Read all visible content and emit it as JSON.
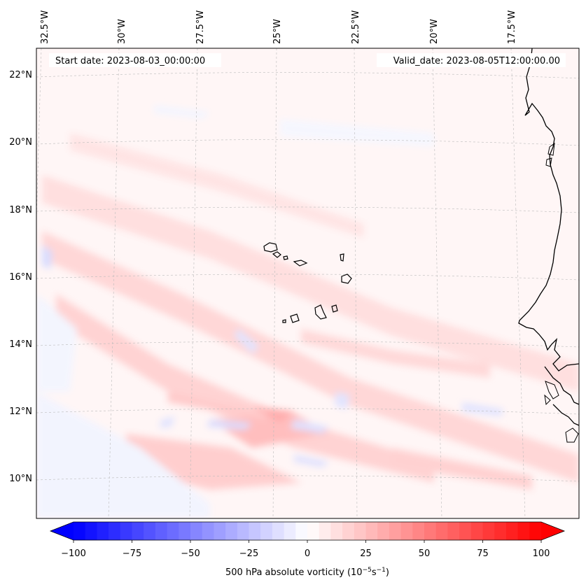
{
  "map": {
    "start_date_label": "Start date: 2023-08-03_00:00:00",
    "valid_date_label": "Valid_date: 2023-08-05T12:00:00.00",
    "lon_labels": [
      "32.5°W",
      "30°W",
      "27.5°W",
      "25°W",
      "22.5°W",
      "20°W",
      "17.5°W"
    ],
    "lat_labels": [
      "22°N",
      "20°N",
      "18°N",
      "16°N",
      "14°N",
      "12°N",
      "10°N"
    ]
  },
  "colorbar": {
    "ticks": [
      "−100",
      "−75",
      "−50",
      "−25",
      "0",
      "25",
      "50",
      "75",
      "100"
    ],
    "label_prefix": "500 hPa absolute vorticity (10",
    "label_exp1": "−5",
    "label_mid": "s",
    "label_exp2": "−1",
    "label_suffix": ")",
    "range": [
      -100,
      100
    ],
    "step": 5,
    "extend": "both",
    "cmap": "bwr"
  },
  "colors": {
    "negative": "#0000ff",
    "zero": "#ffffff",
    "positive": "#ff0000"
  }
}
